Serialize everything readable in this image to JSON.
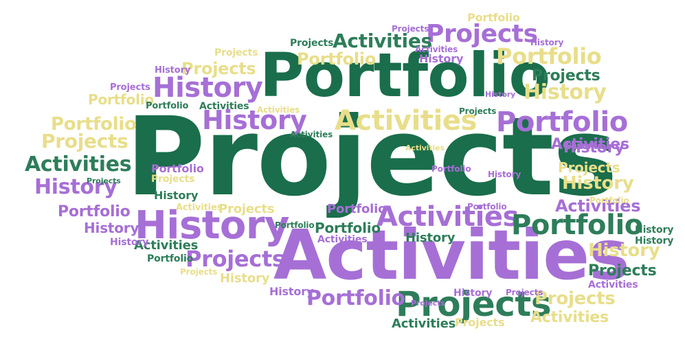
{
  "palette": {
    "green": "#1a6e4b",
    "green_alt": "#2e7d5a",
    "purple": "#a66fd6",
    "khaki": "#e8de8a",
    "background": "#ffffff"
  },
  "words": {
    "w01": "Projects",
    "w02": "Activities",
    "w03": "Portfolio",
    "w04": "History",
    "w05": "Projects",
    "w06": "Portfolio",
    "w07": "Activities",
    "w08": "History",
    "w09": "Activities",
    "w10": "Portfolio",
    "w11": "Projects",
    "w12": "History",
    "w13": "Portfolio",
    "w14": "Activities",
    "w15": "History",
    "w16": "Projects",
    "w17": "Portfolio",
    "w18": "Activities",
    "w19": "Projects",
    "w20": "History",
    "w21": "Portfolio",
    "w22": "Projects",
    "w23": "History",
    "w24": "Activities",
    "w25": "History",
    "w26": "Projects",
    "w27": "Portfolio",
    "w28": "Activities",
    "w29": "History",
    "w30": "Projects",
    "w31": "Portfolio",
    "w32": "History",
    "w33": "Portfolio",
    "w34": "Projects",
    "w35": "Activities",
    "w36": "Portfolio",
    "w37": "Projects",
    "w38": "Projects",
    "w39": "History",
    "w40": "Activities",
    "w41": "Portfolio",
    "w42": "Projects",
    "w43": "History",
    "w44": "Activities",
    "w45": "Portfolio",
    "w46": "Projects",
    "w47": "History",
    "w48": "Activities",
    "w49": "Projects",
    "w50": "Portfolio",
    "w51": "History",
    "w52": "Activities",
    "w53": "Portfolio",
    "w54": "History",
    "w55": "Projects",
    "w56": "Activities",
    "w57": "Portfolio",
    "w58": "History",
    "w59": "Projects",
    "w60": "Activities",
    "w61": "History",
    "w62": "Portfolio",
    "w63": "Projects",
    "w64": "History",
    "w65": "Activities",
    "w66": "History",
    "w67": "Projects",
    "w68": "Portfolio",
    "w69": "Activities",
    "w70": "History",
    "w71": "Portfolio",
    "w72": "Projects",
    "w73": "Activities",
    "w74": "History",
    "w75": "Projects",
    "w76": "Portfolio",
    "w77": "Activities",
    "w78": "History",
    "w79": "Projects",
    "w80": "Portfolio",
    "w81": "History",
    "w82": "Projects"
  }
}
